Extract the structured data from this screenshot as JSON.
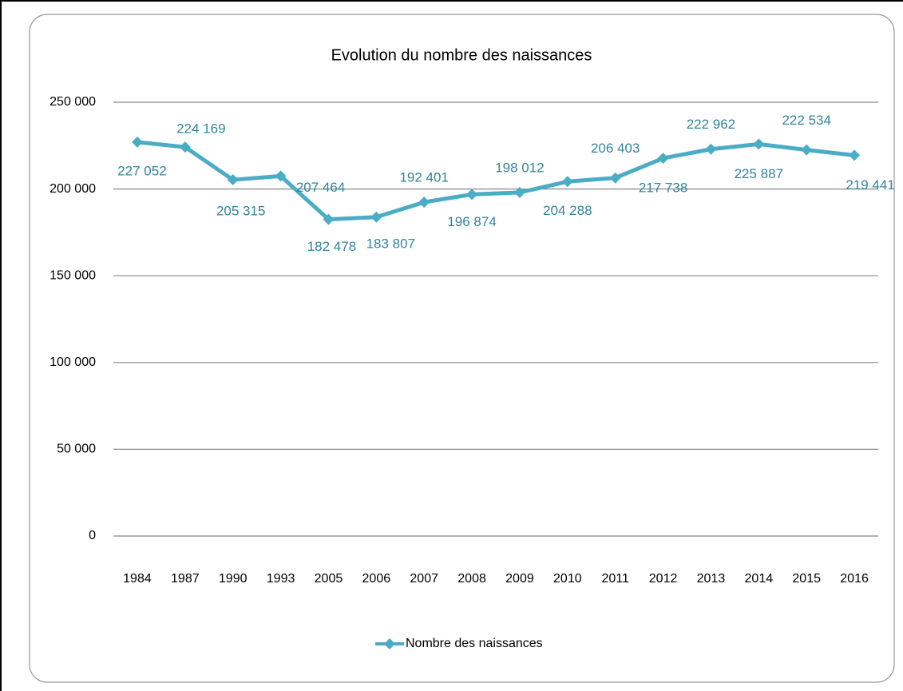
{
  "chart_data": {
    "type": "line",
    "title": "Evolution du nombre des naissances",
    "categories": [
      "1984",
      "1987",
      "1990",
      "1993",
      "2005",
      "2006",
      "2007",
      "2008",
      "2009",
      "2010",
      "2011",
      "2012",
      "2013",
      "2014",
      "2015",
      "2016"
    ],
    "series": [
      {
        "name": "Nombre des naissances",
        "color": "#4bacc6",
        "values": [
          227052,
          224169,
          205315,
          207464,
          182478,
          183807,
          192401,
          196874,
          198012,
          204288,
          206403,
          217738,
          222962,
          225887,
          222534,
          219441
        ],
        "value_labels": [
          "227 052",
          "224 169",
          "205 315",
          "207 464",
          "182 478",
          "183 807",
          "192 401",
          "196 874",
          "198 012",
          "204 288",
          "206 403",
          "217 738",
          "222 962",
          "225 887",
          "222 534",
          "219 441"
        ]
      }
    ],
    "ylim": [
      0,
      250000
    ],
    "yticks": [
      0,
      {
        "value": 50000,
        "label": "50 000"
      },
      {
        "value": 100000,
        "label": "100 000"
      },
      {
        "value": 150000,
        "label": "150 000"
      },
      {
        "value": 200000,
        "label": "200 000"
      },
      {
        "value": 250000,
        "label": "250 000"
      }
    ],
    "grid": true,
    "legend": "bottom"
  }
}
